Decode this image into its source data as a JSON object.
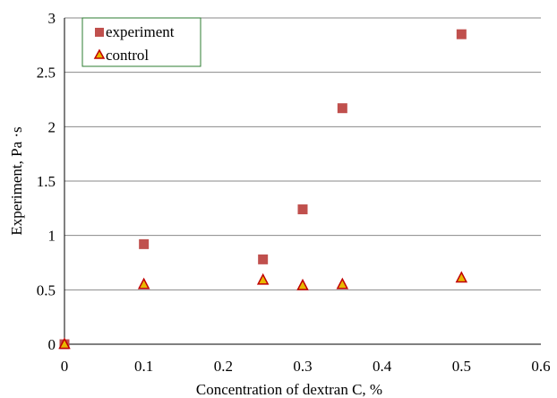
{
  "chart_data": {
    "type": "scatter",
    "xlabel": "Concentration of dextran C, %",
    "ylabel": "Experiment, Pa ·s",
    "xlim": [
      0,
      0.6
    ],
    "ylim": [
      0,
      3
    ],
    "xticks": [
      "0",
      "0.1",
      "0.2",
      "0.3",
      "0.4",
      "0.5",
      "0.6"
    ],
    "yticks": [
      "0",
      "0.5",
      "1",
      "1.5",
      "2",
      "2.5",
      "3"
    ],
    "grid": "horizontal",
    "legend_position": "top-left",
    "series": [
      {
        "name": "experiment",
        "marker": "square",
        "color": "#c0504d",
        "x": [
          0,
          0.1,
          0.25,
          0.3,
          0.35,
          0.5
        ],
        "y": [
          0,
          0.92,
          0.78,
          1.24,
          2.17,
          2.85
        ]
      },
      {
        "name": "control",
        "marker": "triangle",
        "color": "#c00000",
        "fill": "#e8b800",
        "x": [
          0,
          0.1,
          0.25,
          0.3,
          0.35,
          0.5
        ],
        "y": [
          0,
          0.55,
          0.59,
          0.54,
          0.55,
          0.61
        ]
      }
    ]
  }
}
